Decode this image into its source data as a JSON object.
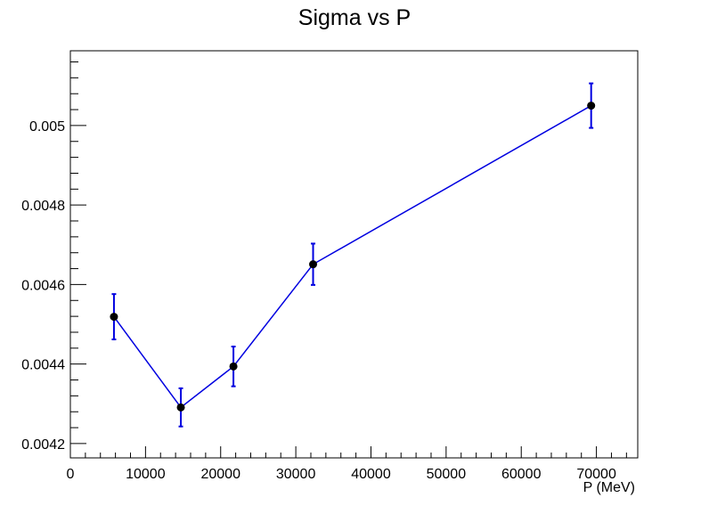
{
  "chart_data": {
    "type": "scatter",
    "title": "Sigma vs P",
    "xlabel": "P (MeV)",
    "ylabel": "",
    "xlim": [
      0,
      75500
    ],
    "ylim": [
      0.004164,
      0.005188
    ],
    "x_ticks": [
      0,
      10000,
      20000,
      30000,
      40000,
      50000,
      60000,
      70000
    ],
    "x_tick_labels": [
      "0",
      "10000",
      "20000",
      "30000",
      "40000",
      "50000",
      "60000",
      "70000"
    ],
    "y_ticks": [
      0.0042,
      0.0044,
      0.0046,
      0.0048,
      0.005
    ],
    "y_tick_labels": [
      "0.0042",
      "0.0044",
      "0.0046",
      "0.0048",
      "0.005"
    ],
    "grid": false,
    "legend": "none",
    "series": [
      {
        "line_color": "#0000e0",
        "marker_color": "#000000",
        "points": [
          {
            "x": 5800,
            "y": 0.004519,
            "err": 5.7e-05
          },
          {
            "x": 14700,
            "y": 0.004291,
            "err": 4.8e-05
          },
          {
            "x": 21700,
            "y": 0.004394,
            "err": 5e-05
          },
          {
            "x": 32300,
            "y": 0.004651,
            "err": 5.2e-05
          },
          {
            "x": 69300,
            "y": 0.00505,
            "err": 5.6e-05
          }
        ]
      }
    ]
  }
}
